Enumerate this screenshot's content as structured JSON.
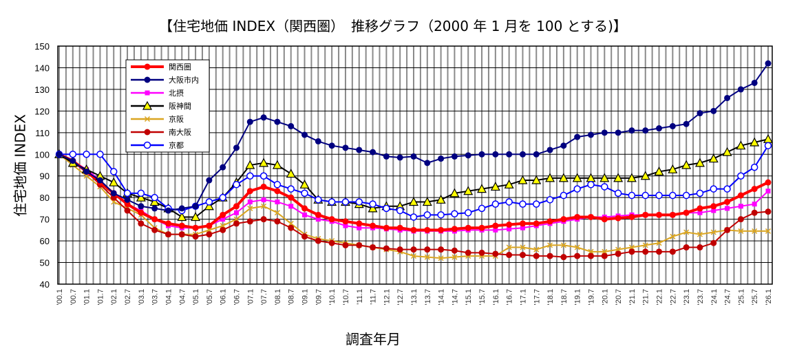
{
  "chart_data": {
    "type": "line",
    "title": "【住宅地価 INDEX（関西圏）　推移グラフ（2000 年 1 月を 100 とする)】",
    "xlabel": "調査年月",
    "ylabel": "住宅地価 INDEX",
    "ylim": [
      40,
      150
    ],
    "yticks": [
      40,
      50,
      60,
      70,
      80,
      90,
      100,
      110,
      120,
      130,
      140,
      150
    ],
    "grid": true,
    "legend": "top-left",
    "categories": [
      "'00.1",
      "'00.7",
      "'01.1",
      "'01.7",
      "'02.1",
      "'02.7",
      "'03.1",
      "'03.7",
      "'04.1",
      "'04.7",
      "'05.1",
      "'05.7",
      "'06.1",
      "'06.7",
      "'07.1",
      "'07.7",
      "'08.1",
      "'08.7",
      "'09.1",
      "'09.7",
      "'10.1",
      "'10.7",
      "'11.1",
      "'11.7",
      "'12.1",
      "'12.7",
      "'13.1",
      "'13.7",
      "'14.1",
      "'14.7",
      "'15.1",
      "'15.7",
      "'16.1",
      "'16.7",
      "'17.1",
      "'17.7",
      "'18.1",
      "'18.7",
      "'19.1",
      "'19.7",
      "'20.1",
      "'20.7",
      "'21.1",
      "'21.7",
      "'22.1",
      "'22.7",
      "'23.1",
      "'23.7",
      "'24.1",
      "'24.7",
      "'25.1",
      "'25.7",
      "'26.1"
    ],
    "series": [
      {
        "name": "関西圏",
        "color": "#ff0000",
        "marker": "circle",
        "values": [
          100,
          97,
          92,
          87,
          82,
          77,
          73,
          70,
          68,
          67,
          66,
          67,
          72,
          76,
          83,
          85,
          83,
          80,
          75,
          72,
          70,
          69,
          68,
          67,
          66,
          66,
          65,
          65,
          65,
          65.5,
          66,
          66,
          67,
          67.5,
          68,
          68,
          69,
          70,
          71,
          71,
          70,
          70.5,
          71,
          72,
          72,
          72,
          73,
          75,
          76,
          78,
          81,
          84,
          87
        ]
      },
      {
        "name": "大阪市内",
        "color": "#000080",
        "marker": "circle",
        "values": [
          100,
          97,
          92,
          88,
          82,
          79,
          76,
          75,
          74,
          75,
          76,
          88,
          94,
          103,
          115,
          117,
          115,
          113,
          109,
          106,
          104,
          103,
          102,
          101,
          99,
          98.5,
          99,
          96,
          98,
          99,
          99.5,
          100,
          100,
          100,
          100,
          100,
          102,
          104,
          108,
          109,
          110,
          110,
          111,
          111,
          112,
          113,
          114,
          119,
          120,
          126,
          130,
          133,
          142
        ]
      },
      {
        "name": "北摂",
        "color": "#ff00ff",
        "marker": "square",
        "values": [
          100,
          97,
          93,
          88,
          82,
          77,
          74,
          70,
          67,
          66,
          66,
          67,
          70,
          73,
          78,
          79,
          78,
          76,
          72,
          70,
          69,
          67,
          66,
          66,
          65.5,
          65,
          64.5,
          64.5,
          64.5,
          64.5,
          65,
          65,
          65,
          65.5,
          66,
          67,
          68,
          69,
          70,
          71,
          71,
          71.5,
          72,
          72,
          72,
          72,
          73,
          73,
          74,
          75,
          76,
          77,
          83
        ]
      },
      {
        "name": "阪神間",
        "color": "#000000",
        "marker": "triangle",
        "marker_fill": "#ffff00",
        "values": [
          100,
          96,
          93,
          90,
          87,
          82,
          80,
          78,
          75,
          71,
          71,
          76,
          80,
          87,
          95,
          96,
          95,
          91,
          86,
          79,
          78,
          78,
          77,
          75,
          76,
          76,
          78,
          78,
          79,
          82,
          83,
          84,
          85,
          86,
          88,
          88,
          89,
          89,
          89,
          89,
          89,
          89,
          89,
          90,
          92,
          93,
          95,
          96,
          98,
          101,
          104,
          105.5,
          107
        ]
      },
      {
        "name": "京阪",
        "color": "#daa520",
        "marker": "x",
        "values": [
          100,
          95,
          90,
          85,
          78,
          75,
          72,
          66,
          63,
          63,
          63,
          65,
          67,
          70,
          75,
          76,
          73,
          68,
          63,
          61,
          60,
          59,
          58,
          57,
          56,
          55,
          53,
          52.5,
          52,
          52.5,
          53,
          53,
          53,
          57,
          57,
          56,
          58,
          58,
          57,
          55,
          55,
          56,
          57,
          58,
          59,
          62,
          64,
          63,
          64,
          65,
          64.5,
          64.5,
          64.5
        ]
      },
      {
        "name": "南大阪",
        "color": "#c00000",
        "marker": "circle",
        "values": [
          100,
          97,
          92,
          86,
          80,
          74,
          68,
          65,
          63,
          63,
          62,
          63,
          65,
          68,
          69,
          70,
          69,
          66,
          62,
          60,
          59,
          58,
          58,
          57,
          56.5,
          56,
          56,
          56,
          56,
          55.5,
          54.5,
          54.5,
          54,
          53.5,
          53.5,
          53,
          53,
          52.5,
          53,
          53,
          53,
          54,
          55,
          55,
          55,
          55,
          57,
          57,
          59,
          65,
          70,
          73,
          73.5
        ]
      },
      {
        "name": "京都",
        "color": "#0000ff",
        "marker": "open-circle",
        "values": [
          100,
          100,
          100,
          100,
          92,
          82,
          82,
          80,
          75,
          74,
          76,
          78,
          80,
          86,
          90,
          90,
          86,
          84,
          82,
          79,
          78,
          78,
          78,
          77,
          75,
          74,
          71,
          72,
          72,
          72.5,
          73,
          75,
          77,
          78,
          77,
          77,
          79,
          81,
          84,
          86,
          85,
          82,
          81,
          81,
          81,
          81,
          81,
          82,
          84,
          84,
          90,
          94,
          104
        ]
      }
    ]
  }
}
